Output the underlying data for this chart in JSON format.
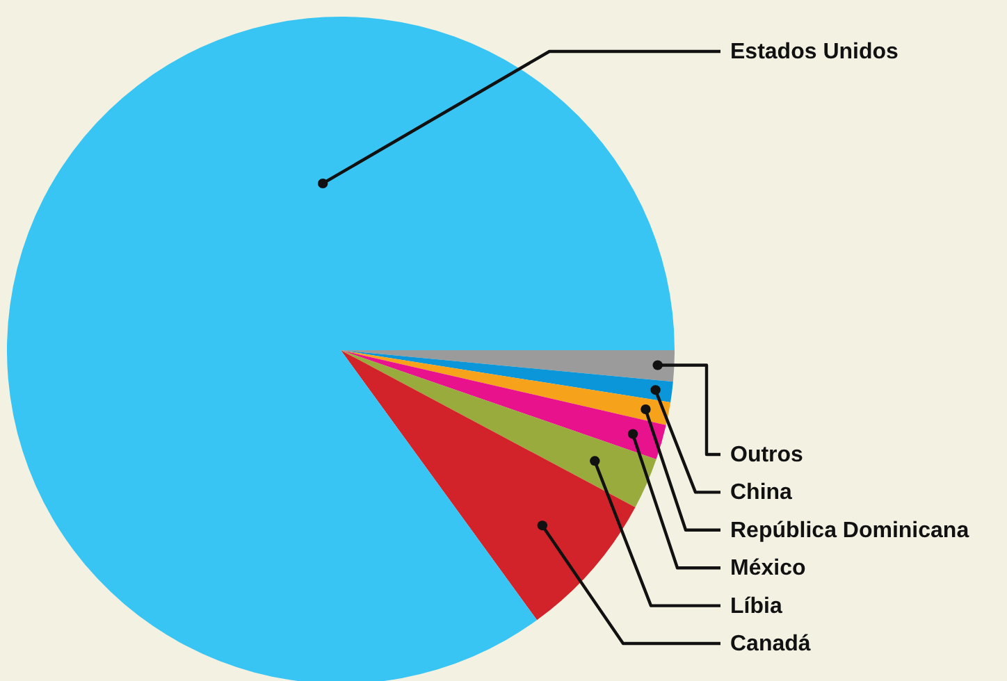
{
  "chart_data": {
    "type": "pie",
    "categories": [
      "Outros",
      "China",
      "República Dominicana",
      "México",
      "Líbia",
      "Canadá",
      "Estados Unidos"
    ],
    "values": [
      1.5,
      1.0,
      1.1,
      1.7,
      2.5,
      7.2,
      85.0
    ],
    "colors": [
      "#9b9b9b",
      "#0a96d8",
      "#f7a21b",
      "#e8128c",
      "#9aab3e",
      "#d2232a",
      "#38c5f3"
    ]
  }
}
